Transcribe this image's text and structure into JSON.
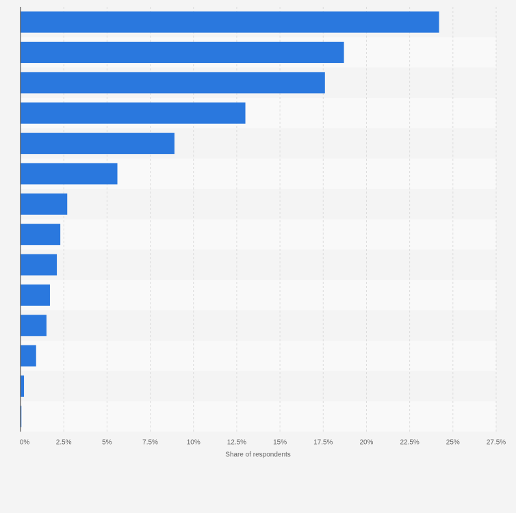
{
  "chart_data": {
    "type": "bar",
    "orientation": "horizontal",
    "x_label": "Share of respondents",
    "categories": [
      null,
      null,
      null,
      null,
      null,
      null,
      null,
      null,
      null,
      null,
      null,
      null,
      null,
      null
    ],
    "values": [
      24.2,
      18.7,
      17.6,
      13,
      8.9,
      5.6,
      2.7,
      2.3,
      2.1,
      1.7,
      1.5,
      0.9,
      0.2,
      0.05
    ],
    "color": "#2a78de",
    "xlim": [
      0,
      27.5
    ],
    "xticks": [
      {
        "value": 0,
        "label": "0%"
      },
      {
        "value": 2.5,
        "label": "2.5%"
      },
      {
        "value": 5,
        "label": "5%"
      },
      {
        "value": 7.5,
        "label": "7.5%"
      },
      {
        "value": 10,
        "label": "10%"
      },
      {
        "value": 12.5,
        "label": "12.5%"
      },
      {
        "value": 15,
        "label": "15%"
      },
      {
        "value": 17.5,
        "label": "17.5%"
      },
      {
        "value": 20,
        "label": "20%"
      },
      {
        "value": 22.5,
        "label": "22.5%"
      },
      {
        "value": 25,
        "label": "25%"
      },
      {
        "value": 27.5,
        "label": "27.5%"
      }
    ],
    "grid": true
  }
}
